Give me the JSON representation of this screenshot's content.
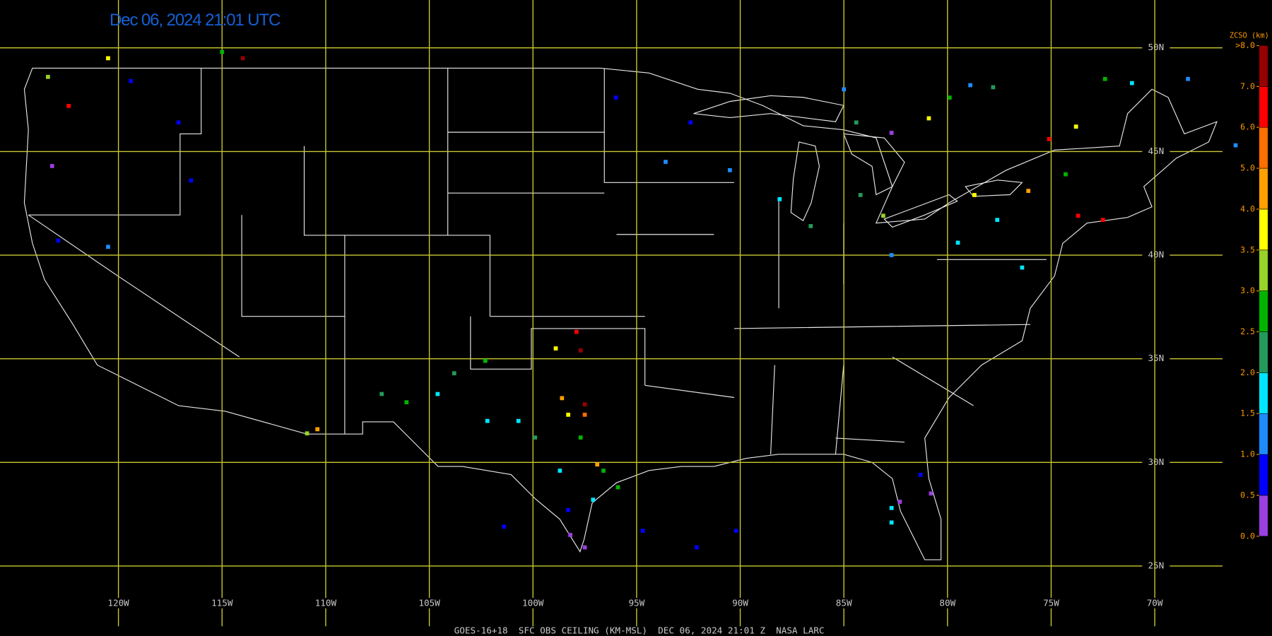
{
  "title": "Dec 06, 2024 21:01 UTC",
  "footer": "GOES-16+18  SFC OBS CEILING (KM-MSL)  DEC 06, 2024 21:01 Z  NASA LARC",
  "map": {
    "lat_lines": [
      {
        "value": 50,
        "label": "50N"
      },
      {
        "value": 45,
        "label": "45N"
      },
      {
        "value": 40,
        "label": "40N"
      },
      {
        "value": 35,
        "label": "35N"
      },
      {
        "value": 30,
        "label": "30N"
      },
      {
        "value": 25,
        "label": "25N"
      }
    ],
    "lon_lines": [
      {
        "value": -120,
        "label": "120W"
      },
      {
        "value": -115,
        "label": "115W"
      },
      {
        "value": -110,
        "label": "110W"
      },
      {
        "value": -105,
        "label": "105W"
      },
      {
        "value": -100,
        "label": "100W"
      },
      {
        "value": -95,
        "label": "95W"
      },
      {
        "value": -90,
        "label": "90W"
      },
      {
        "value": -85,
        "label": "85W"
      },
      {
        "value": -80,
        "label": "80W"
      },
      {
        "value": -75,
        "label": "75W"
      },
      {
        "value": -70,
        "label": "70W"
      }
    ],
    "grid_color": "#c8c832"
  },
  "legend": {
    "title": "ZCSO (km)",
    "ticks": [
      {
        "value": 0,
        "label": "0.0"
      },
      {
        "value": 0.5,
        "label": "0.5"
      },
      {
        "value": 1,
        "label": "1.0"
      },
      {
        "value": 1.5,
        "label": "1.5"
      },
      {
        "value": 2,
        "label": "2.0"
      },
      {
        "value": 2.5,
        "label": "2.5"
      },
      {
        "value": 3,
        "label": "3.0"
      },
      {
        "value": 3.5,
        "label": "3.5"
      },
      {
        "value": 4,
        "label": "4.0"
      },
      {
        "value": 5,
        "label": "5.0"
      },
      {
        "value": 6,
        "label": "6.0"
      },
      {
        "value": 7,
        "label": "7.0"
      },
      {
        "value": 8,
        "label": ">8.0"
      }
    ],
    "colors": [
      "#9b3fe0",
      "#0000ff",
      "#1e8cff",
      "#00e6ff",
      "#239a5a",
      "#00b400",
      "#96d228",
      "#ffff00",
      "#ffa000",
      "#ff6e00",
      "#ff0000",
      "#960000"
    ]
  },
  "stations": [
    [
      -122.4,
      47.2,
      6.5
    ],
    [
      -123.4,
      48.6,
      3.2
    ],
    [
      -120.5,
      49.5,
      3.8
    ],
    [
      -119.4,
      48.4,
      0.8
    ],
    [
      -117.1,
      46.4,
      0.8
    ],
    [
      -123.2,
      44.3,
      0.3
    ],
    [
      -122.9,
      40.7,
      0.8
    ],
    [
      -120.5,
      40.4,
      1.2
    ],
    [
      -116.5,
      43.6,
      0.8
    ],
    [
      -115.0,
      49.8,
      2.8
    ],
    [
      -114.0,
      49.5,
      7.5
    ],
    [
      -96.0,
      47.6,
      0.8
    ],
    [
      -93.6,
      44.5,
      1.2
    ],
    [
      -92.4,
      46.4,
      0.8
    ],
    [
      -90.5,
      44.1,
      1.2
    ],
    [
      -88.1,
      42.7,
      1.8
    ],
    [
      -86.6,
      41.4,
      2.3
    ],
    [
      -84.2,
      42.9,
      2.3
    ],
    [
      -83.1,
      41.9,
      3.2
    ],
    [
      -85.0,
      48.0,
      1.2
    ],
    [
      -84.4,
      46.4,
      2.3
    ],
    [
      -82.7,
      45.9,
      0.3
    ],
    [
      -80.9,
      46.6,
      3.8
    ],
    [
      -78.9,
      48.2,
      1.2
    ],
    [
      -77.8,
      48.1,
      2.3
    ],
    [
      -79.9,
      47.6,
      2.8
    ],
    [
      -78.7,
      42.9,
      3.8
    ],
    [
      -76.1,
      43.1,
      4.5
    ],
    [
      -77.6,
      41.7,
      1.8
    ],
    [
      -79.5,
      40.6,
      1.8
    ],
    [
      -76.4,
      39.4,
      1.8
    ],
    [
      -82.7,
      40.0,
      1.2
    ],
    [
      -73.7,
      41.9,
      6.5
    ],
    [
      -72.5,
      41.7,
      6.5
    ],
    [
      -75.1,
      45.6,
      6.5
    ],
    [
      -73.8,
      46.2,
      3.8
    ],
    [
      -74.3,
      43.9,
      2.8
    ],
    [
      -71.1,
      48.3,
      1.8
    ],
    [
      -72.4,
      48.5,
      2.8
    ],
    [
      -68.4,
      48.5,
      1.2
    ],
    [
      -66.1,
      45.3,
      1.2
    ],
    [
      -97.9,
      36.3,
      6.5
    ],
    [
      -97.7,
      35.4,
      7.5
    ],
    [
      -98.9,
      35.5,
      3.8
    ],
    [
      -102.3,
      34.9,
      2.8
    ],
    [
      -103.8,
      34.3,
      2.3
    ],
    [
      -106.1,
      32.9,
      2.8
    ],
    [
      -107.3,
      33.3,
      2.3
    ],
    [
      -110.4,
      31.6,
      4.5
    ],
    [
      -110.9,
      31.4,
      3.2
    ],
    [
      -104.6,
      33.3,
      1.8
    ],
    [
      -102.2,
      32.0,
      1.8
    ],
    [
      -99.9,
      31.2,
      2.3
    ],
    [
      -98.6,
      33.1,
      4.5
    ],
    [
      -97.5,
      32.8,
      7.5
    ],
    [
      -97.5,
      32.3,
      5.5
    ],
    [
      -97.7,
      31.2,
      2.8
    ],
    [
      -98.3,
      32.3,
      3.8
    ],
    [
      -96.9,
      29.9,
      4.5
    ],
    [
      -96.6,
      29.6,
      2.8
    ],
    [
      -98.7,
      29.6,
      1.8
    ],
    [
      -98.3,
      27.7,
      0.8
    ],
    [
      -97.5,
      25.9,
      0.3
    ],
    [
      -98.2,
      26.5,
      0.3
    ],
    [
      -97.1,
      28.2,
      1.8
    ],
    [
      -95.9,
      28.8,
      2.8
    ],
    [
      -100.7,
      32.0,
      1.8
    ],
    [
      -101.4,
      26.9,
      0.8
    ],
    [
      -94.7,
      26.7,
      0.8
    ],
    [
      -92.1,
      25.9,
      0.8
    ],
    [
      -90.2,
      26.7,
      0.8
    ],
    [
      -81.3,
      29.4,
      0.8
    ],
    [
      -80.8,
      28.5,
      0.3
    ],
    [
      -82.3,
      28.1,
      0.3
    ],
    [
      -82.7,
      27.8,
      1.8
    ],
    [
      -82.7,
      27.1,
      1.8
    ]
  ]
}
